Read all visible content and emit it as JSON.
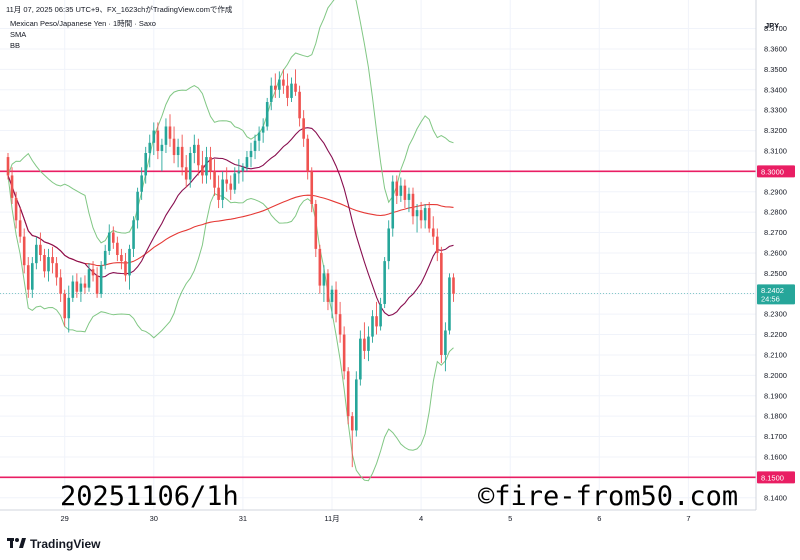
{
  "header": {
    "line1": "11月 07, 2025 06:35 UTC+9、FX_1623chがTradingView.comで作成",
    "symbol": "Mexican Peso/Japanese Yen · 1時間 · Saxo",
    "ind1": "SMA",
    "ind2": "BB"
  },
  "currency_label": "JPY",
  "brand": "TradingView",
  "watermark_left": "20251106/1h",
  "watermark_right": "©fire-from50.com",
  "price_badge": {
    "price": "8.2402",
    "countdown": "24:56",
    "color": "#26a69a"
  },
  "colors": {
    "up": "#26a69a",
    "down": "#ef5350",
    "bb": "#81c784",
    "sma_short": "#880e4f",
    "sma_long": "#e53935",
    "level": "#e91e63"
  },
  "chart_data": {
    "type": "candlestick",
    "title": "",
    "xlabel": "",
    "ylabel": "",
    "ylim": [
      8.134,
      8.384
    ],
    "y_ticks": [
      "8.1400",
      "8.1500",
      "8.1600",
      "8.1700",
      "8.1800",
      "8.1900",
      "8.2000",
      "8.2100",
      "8.2200",
      "8.2300",
      "8.2400",
      "8.2500",
      "8.2600",
      "8.2700",
      "8.2800",
      "8.2900",
      "8.3000",
      "8.3100",
      "8.3200",
      "8.3300",
      "8.3400",
      "8.3500",
      "8.3600",
      "8.3700"
    ],
    "x_ticks": [
      {
        "label": "29",
        "bar": 14
      },
      {
        "label": "30",
        "bar": 36
      },
      {
        "label": "31",
        "bar": 58
      },
      {
        "label": "11月",
        "bar": 80
      },
      {
        "label": "4",
        "bar": 102
      },
      {
        "label": "5",
        "bar": 124
      },
      {
        "label": "6",
        "bar": 146
      },
      {
        "label": "7",
        "bar": 168
      }
    ],
    "horizontal_levels": [
      {
        "price": 8.3,
        "label": "8.3000"
      },
      {
        "price": 8.15,
        "label": "8.1500"
      }
    ],
    "current_price": 8.2402,
    "ohlc": [
      [
        8.307,
        8.309,
        8.296,
        8.298
      ],
      [
        8.298,
        8.302,
        8.284,
        8.287
      ],
      [
        8.287,
        8.29,
        8.272,
        8.276
      ],
      [
        8.276,
        8.282,
        8.265,
        8.268
      ],
      [
        8.268,
        8.272,
        8.25,
        8.254
      ],
      [
        8.254,
        8.258,
        8.238,
        8.242
      ],
      [
        8.242,
        8.258,
        8.238,
        8.255
      ],
      [
        8.255,
        8.268,
        8.252,
        8.264
      ],
      [
        8.264,
        8.27,
        8.256,
        8.259
      ],
      [
        8.259,
        8.262,
        8.248,
        8.251
      ],
      [
        8.251,
        8.262,
        8.246,
        8.258
      ],
      [
        8.258,
        8.263,
        8.25,
        8.255
      ],
      [
        8.255,
        8.258,
        8.244,
        8.248
      ],
      [
        8.248,
        8.252,
        8.236,
        8.24
      ],
      [
        8.24,
        8.242,
        8.224,
        8.228
      ],
      [
        8.228,
        8.244,
        8.221,
        8.238
      ],
      [
        8.238,
        8.249,
        8.236,
        8.246
      ],
      [
        8.246,
        8.25,
        8.238,
        8.241
      ],
      [
        8.241,
        8.248,
        8.236,
        8.245
      ],
      [
        8.245,
        8.249,
        8.24,
        8.243
      ],
      [
        8.243,
        8.255,
        8.241,
        8.252
      ],
      [
        8.252,
        8.256,
        8.246,
        8.249
      ],
      [
        8.249,
        8.253,
        8.238,
        8.24
      ],
      [
        8.24,
        8.256,
        8.238,
        8.254
      ],
      [
        8.254,
        8.264,
        8.252,
        8.261
      ],
      [
        8.261,
        8.274,
        8.259,
        8.27
      ],
      [
        8.27,
        8.273,
        8.262,
        8.265
      ],
      [
        8.265,
        8.268,
        8.256,
        8.259
      ],
      [
        8.259,
        8.262,
        8.252,
        8.256
      ],
      [
        8.256,
        8.26,
        8.246,
        8.249
      ],
      [
        8.249,
        8.264,
        8.242,
        8.262
      ],
      [
        8.262,
        8.278,
        8.258,
        8.276
      ],
      [
        8.276,
        8.292,
        8.272,
        8.29
      ],
      [
        8.29,
        8.302,
        8.286,
        8.298
      ],
      [
        8.298,
        8.312,
        8.294,
        8.309
      ],
      [
        8.309,
        8.318,
        8.302,
        8.314
      ],
      [
        8.314,
        8.324,
        8.308,
        8.32
      ],
      [
        8.32,
        8.324,
        8.306,
        8.31
      ],
      [
        8.31,
        8.316,
        8.3,
        8.313
      ],
      [
        8.313,
        8.326,
        8.309,
        8.322
      ],
      [
        8.322,
        8.328,
        8.312,
        8.316
      ],
      [
        8.316,
        8.322,
        8.304,
        8.308
      ],
      [
        8.308,
        8.316,
        8.302,
        8.312
      ],
      [
        8.312,
        8.318,
        8.298,
        8.302
      ],
      [
        8.302,
        8.308,
        8.292,
        8.296
      ],
      [
        8.296,
        8.312,
        8.292,
        8.309
      ],
      [
        8.309,
        8.318,
        8.304,
        8.313
      ],
      [
        8.313,
        8.316,
        8.298,
        8.303
      ],
      [
        8.303,
        8.31,
        8.294,
        8.298
      ],
      [
        8.298,
        8.312,
        8.294,
        8.307
      ],
      [
        8.307,
        8.312,
        8.296,
        8.3
      ],
      [
        8.3,
        8.306,
        8.288,
        8.292
      ],
      [
        8.292,
        8.298,
        8.282,
        8.286
      ],
      [
        8.286,
        8.3,
        8.282,
        8.296
      ],
      [
        8.296,
        8.302,
        8.29,
        8.294
      ],
      [
        8.294,
        8.298,
        8.286,
        8.291
      ],
      [
        8.291,
        8.302,
        8.289,
        8.299
      ],
      [
        8.299,
        8.306,
        8.294,
        8.3
      ],
      [
        8.3,
        8.304,
        8.295,
        8.302
      ],
      [
        8.302,
        8.31,
        8.3,
        8.307
      ],
      [
        8.307,
        8.314,
        8.302,
        8.31
      ],
      [
        8.31,
        8.318,
        8.306,
        8.315
      ],
      [
        8.315,
        8.322,
        8.31,
        8.319
      ],
      [
        8.319,
        8.326,
        8.314,
        8.322
      ],
      [
        8.322,
        8.336,
        8.32,
        8.334
      ],
      [
        8.334,
        8.346,
        8.33,
        8.342
      ],
      [
        8.342,
        8.348,
        8.336,
        8.34
      ],
      [
        8.34,
        8.349,
        8.336,
        8.345
      ],
      [
        8.345,
        8.35,
        8.338,
        8.342
      ],
      [
        8.342,
        8.348,
        8.332,
        8.336
      ],
      [
        8.336,
        8.346,
        8.334,
        8.343
      ],
      [
        8.343,
        8.35,
        8.337,
        8.339
      ],
      [
        8.339,
        8.342,
        8.322,
        8.326
      ],
      [
        8.326,
        8.33,
        8.312,
        8.316
      ],
      [
        8.316,
        8.318,
        8.296,
        8.3
      ],
      [
        8.3,
        8.302,
        8.28,
        8.284
      ],
      [
        8.284,
        8.286,
        8.258,
        8.262
      ],
      [
        8.262,
        8.264,
        8.24,
        8.244
      ],
      [
        8.244,
        8.254,
        8.236,
        8.25
      ],
      [
        8.25,
        8.252,
        8.232,
        8.236
      ],
      [
        8.236,
        8.244,
        8.228,
        8.242
      ],
      [
        8.242,
        8.246,
        8.226,
        8.23
      ],
      [
        8.23,
        8.236,
        8.216,
        8.22
      ],
      [
        8.22,
        8.224,
        8.198,
        8.202
      ],
      [
        8.202,
        8.204,
        8.176,
        8.18
      ],
      [
        8.18,
        8.182,
        8.155,
        8.173
      ],
      [
        8.173,
        8.202,
        8.17,
        8.198
      ],
      [
        8.198,
        8.222,
        8.195,
        8.218
      ],
      [
        8.218,
        8.226,
        8.208,
        8.212
      ],
      [
        8.212,
        8.224,
        8.207,
        8.219
      ],
      [
        8.219,
        8.232,
        8.216,
        8.229
      ],
      [
        8.229,
        8.236,
        8.22,
        8.224
      ],
      [
        8.224,
        8.238,
        8.222,
        8.235
      ],
      [
        8.235,
        8.258,
        8.233,
        8.256
      ],
      [
        8.256,
        8.276,
        8.252,
        8.272
      ],
      [
        8.272,
        8.298,
        8.268,
        8.295
      ],
      [
        8.295,
        8.298,
        8.284,
        8.288
      ],
      [
        8.288,
        8.297,
        8.285,
        8.293
      ],
      [
        8.293,
        8.296,
        8.282,
        8.286
      ],
      [
        8.286,
        8.292,
        8.28,
        8.289
      ],
      [
        8.289,
        8.292,
        8.274,
        8.278
      ],
      [
        8.278,
        8.284,
        8.27,
        8.281
      ],
      [
        8.281,
        8.285,
        8.272,
        8.276
      ],
      [
        8.276,
        8.284,
        8.272,
        8.282
      ],
      [
        8.282,
        8.285,
        8.27,
        8.272
      ],
      [
        8.272,
        8.278,
        8.264,
        8.268
      ],
      [
        8.268,
        8.272,
        8.256,
        8.26
      ],
      [
        8.26,
        8.263,
        8.206,
        8.21
      ],
      [
        8.21,
        8.226,
        8.202,
        8.222
      ],
      [
        8.222,
        8.25,
        8.22,
        8.248
      ],
      [
        8.248,
        8.25,
        8.236,
        8.24
      ]
    ]
  }
}
